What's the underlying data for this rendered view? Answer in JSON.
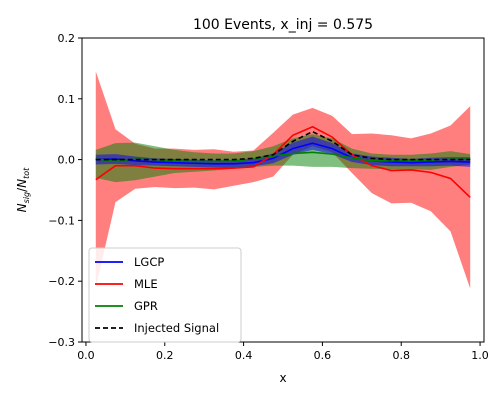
{
  "chart_data": {
    "type": "line",
    "title": "100 Events, x_inj = 0.575",
    "xlabel": "x",
    "ylabel": "N_sig/N_tot",
    "xlim": [
      -0.01,
      1.01
    ],
    "ylim": [
      -0.3,
      0.2
    ],
    "xticks": [
      0.0,
      0.2,
      0.4,
      0.6,
      0.8,
      1.0
    ],
    "xtick_labels": [
      "0.0",
      "0.2",
      "0.4",
      "0.6",
      "0.8",
      "1.0"
    ],
    "yticks": [
      -0.3,
      -0.2,
      -0.1,
      0.0,
      0.1,
      0.2
    ],
    "ytick_labels": [
      "−0.3",
      "−0.2",
      "−0.1",
      "0.0",
      "0.1",
      "0.2"
    ],
    "grid": false,
    "legend_position": "lower-left",
    "x": [
      0.025,
      0.075,
      0.125,
      0.175,
      0.225,
      0.275,
      0.325,
      0.375,
      0.425,
      0.475,
      0.525,
      0.575,
      0.625,
      0.675,
      0.725,
      0.775,
      0.825,
      0.875,
      0.925,
      0.975
    ],
    "series": [
      {
        "name": "LGCP",
        "color": "#0000ff",
        "style": "solid",
        "values": [
          0.0,
          0.001,
          -0.002,
          -0.004,
          -0.005,
          -0.006,
          -0.007,
          -0.007,
          -0.005,
          0.002,
          0.018,
          0.027,
          0.018,
          0.003,
          -0.002,
          -0.004,
          -0.005,
          -0.004,
          -0.003,
          -0.004
        ],
        "band_lower": [
          -0.008,
          -0.007,
          -0.009,
          -0.01,
          -0.011,
          -0.012,
          -0.013,
          -0.013,
          -0.011,
          -0.006,
          0.008,
          0.016,
          0.009,
          -0.004,
          -0.009,
          -0.011,
          -0.011,
          -0.011,
          -0.01,
          -0.012
        ],
        "band_upper": [
          0.008,
          0.009,
          0.005,
          0.002,
          0.001,
          0.0,
          -0.001,
          -0.001,
          0.001,
          0.01,
          0.028,
          0.038,
          0.027,
          0.01,
          0.005,
          0.003,
          0.001,
          0.003,
          0.004,
          0.004
        ]
      },
      {
        "name": "MLE",
        "color": "#ff0000",
        "style": "solid",
        "values": [
          -0.033,
          -0.01,
          -0.01,
          -0.014,
          -0.015,
          -0.015,
          -0.015,
          -0.014,
          -0.012,
          0.008,
          0.04,
          0.054,
          0.037,
          0.008,
          -0.01,
          -0.018,
          -0.017,
          -0.021,
          -0.031,
          -0.062
        ],
        "band_lower": [
          -0.21,
          -0.07,
          -0.048,
          -0.045,
          -0.047,
          -0.046,
          -0.049,
          -0.043,
          -0.037,
          -0.028,
          0.008,
          0.022,
          0.012,
          -0.022,
          -0.055,
          -0.072,
          -0.071,
          -0.085,
          -0.118,
          -0.212
        ],
        "band_upper": [
          0.145,
          0.05,
          0.026,
          0.018,
          0.018,
          0.016,
          0.017,
          0.013,
          0.015,
          0.044,
          0.074,
          0.085,
          0.072,
          0.042,
          0.043,
          0.04,
          0.035,
          0.043,
          0.056,
          0.088
        ]
      },
      {
        "name": "GPR",
        "color": "#008000",
        "style": "solid",
        "values": [
          0.001,
          -0.003,
          0.001,
          0.0,
          -0.002,
          -0.003,
          -0.003,
          -0.002,
          0.001,
          0.006,
          0.01,
          0.012,
          0.009,
          0.003,
          -0.002,
          -0.002,
          -0.001,
          -0.001,
          0.001,
          0.001
        ],
        "band_lower": [
          -0.03,
          -0.037,
          -0.034,
          -0.028,
          -0.022,
          -0.02,
          -0.018,
          -0.015,
          -0.012,
          -0.01,
          -0.01,
          -0.012,
          -0.012,
          -0.014,
          -0.015,
          -0.016,
          -0.016,
          -0.017,
          -0.012,
          -0.008
        ],
        "band_upper": [
          0.016,
          0.027,
          0.028,
          0.022,
          0.016,
          0.012,
          0.01,
          0.01,
          0.014,
          0.022,
          0.035,
          0.042,
          0.035,
          0.018,
          0.01,
          0.008,
          0.008,
          0.01,
          0.014,
          0.009
        ]
      },
      {
        "name": "Injected Signal",
        "color": "#000000",
        "style": "dashed",
        "values": [
          0.0,
          0.0,
          0.0,
          0.0,
          0.0,
          0.0,
          0.0,
          0.0,
          0.002,
          0.008,
          0.03,
          0.046,
          0.03,
          0.008,
          0.002,
          0.0,
          0.0,
          0.0,
          0.0,
          0.0
        ]
      }
    ]
  }
}
